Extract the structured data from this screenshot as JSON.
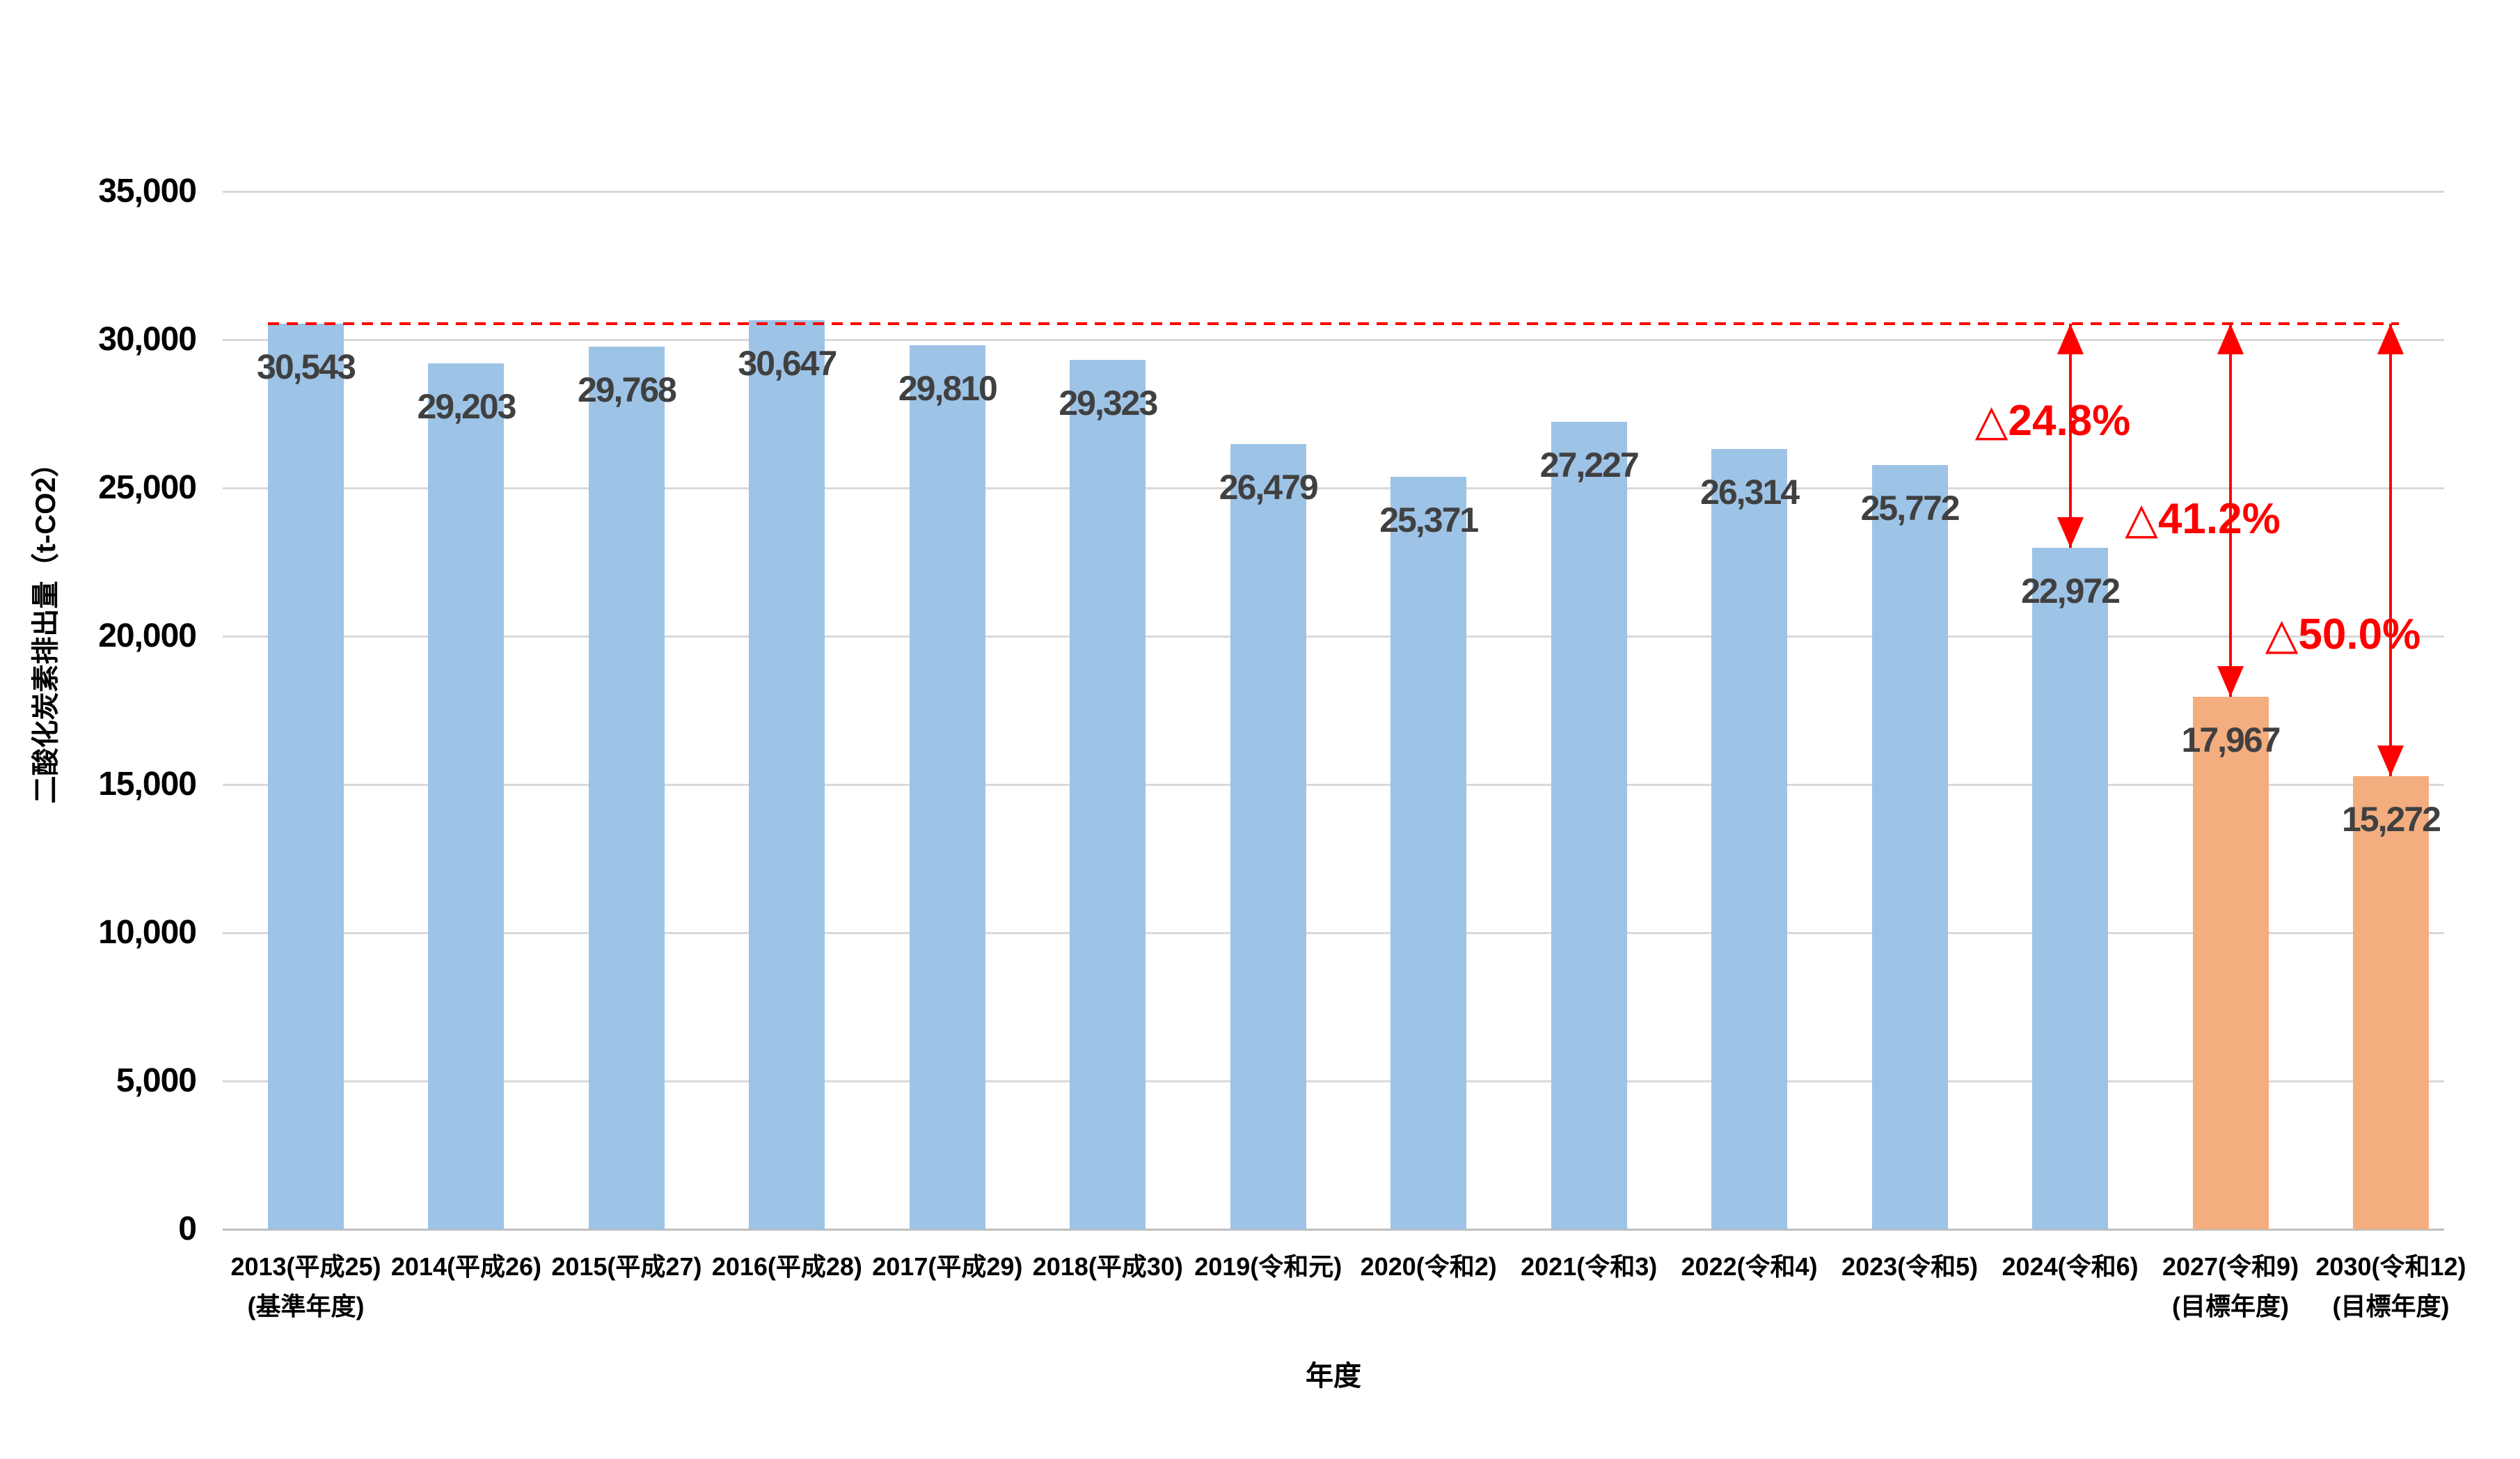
{
  "chart_data": {
    "type": "bar",
    "title": "",
    "xlabel": "年度",
    "ylabel": "二酸化炭素排出量（t-CO2）",
    "ylim": [
      0,
      35000
    ],
    "ytick_step": 5000,
    "ytick_labels": [
      "35,000",
      "30,000",
      "25,000",
      "20,000",
      "15,000",
      "10,000",
      "5,000",
      "0"
    ],
    "grid": true,
    "legend": false,
    "categories": [
      {
        "line1": "2013(平成25)",
        "line2": "(基準年度)",
        "value": 30543,
        "label": "30,543",
        "color": "blue"
      },
      {
        "line1": "2014(平成26)",
        "line2": "",
        "value": 29203,
        "label": "29,203",
        "color": "blue"
      },
      {
        "line1": "2015(平成27)",
        "line2": "",
        "value": 29768,
        "label": "29,768",
        "color": "blue"
      },
      {
        "line1": "2016(平成28)",
        "line2": "",
        "value": 30647,
        "label": "30,647",
        "color": "blue"
      },
      {
        "line1": "2017(平成29)",
        "line2": "",
        "value": 29810,
        "label": "29,810",
        "color": "blue"
      },
      {
        "line1": "2018(平成30)",
        "line2": "",
        "value": 29323,
        "label": "29,323",
        "color": "blue"
      },
      {
        "line1": "2019(令和元)",
        "line2": "",
        "value": 26479,
        "label": "26,479",
        "color": "blue"
      },
      {
        "line1": "2020(令和2)",
        "line2": "",
        "value": 25371,
        "label": "25,371",
        "color": "blue"
      },
      {
        "line1": "2021(令和3)",
        "line2": "",
        "value": 27227,
        "label": "27,227",
        "color": "blue"
      },
      {
        "line1": "2022(令和4)",
        "line2": "",
        "value": 26314,
        "label": "26,314",
        "color": "blue"
      },
      {
        "line1": "2023(令和5)",
        "line2": "",
        "value": 25772,
        "label": "25,772",
        "color": "blue"
      },
      {
        "line1": "2024(令和6)",
        "line2": "",
        "value": 22972,
        "label": "22,972",
        "color": "blue"
      },
      {
        "line1": "2027(令和9)",
        "line2": "(目標年度)",
        "value": 17967,
        "label": "17,967",
        "color": "orange"
      },
      {
        "line1": "2030(令和12)",
        "line2": "(目標年度)",
        "value": 15272,
        "label": "15,272",
        "color": "orange"
      }
    ],
    "reference_line": {
      "value": 30543,
      "style": "dashed",
      "color": "#FF0000"
    },
    "annotations": [
      {
        "category_index": 11,
        "label": "△24.8%"
      },
      {
        "category_index": 12,
        "label": "△41.2%"
      },
      {
        "category_index": 13,
        "label": "△50.0%"
      }
    ],
    "colors": {
      "bar_blue": "#9DC3E6",
      "bar_orange": "#F3AD7E",
      "annotation_red": "#FF0000",
      "data_label": "#404040",
      "gridline": "#D9D9D9",
      "axis_line": "#BFBFBF",
      "tick_text": "#000000",
      "x_title_text": "#595959"
    }
  }
}
